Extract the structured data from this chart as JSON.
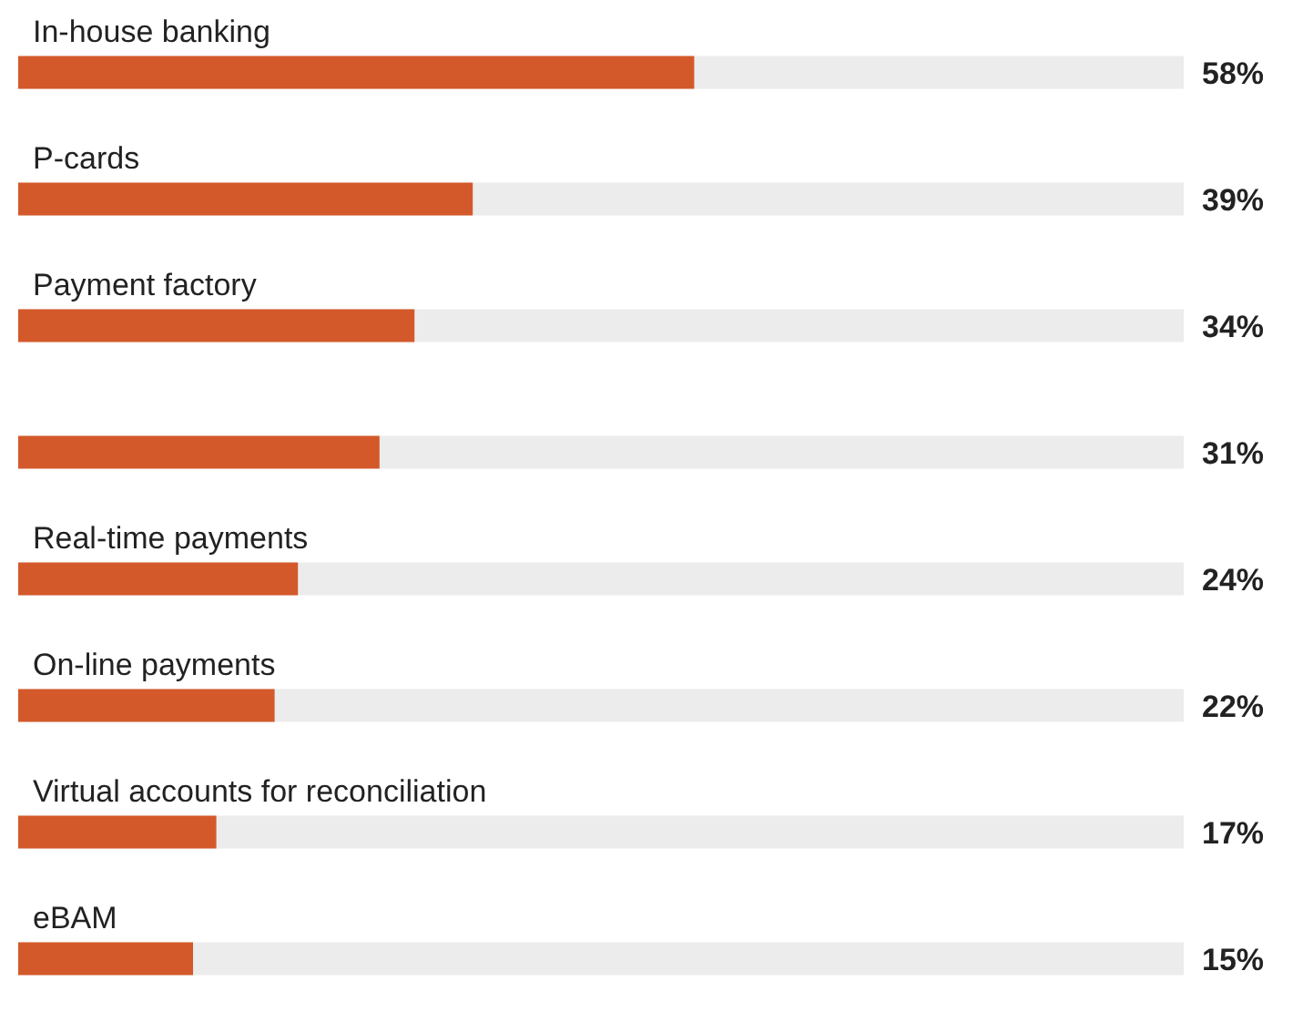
{
  "chart_data": {
    "type": "bar",
    "orientation": "horizontal",
    "categories": [
      "In-house banking",
      "P-cards",
      "Payment factory",
      null,
      "Real-time payments",
      "On-line payments",
      "Virtual accounts for reconciliation",
      "eBAM"
    ],
    "values": [
      58,
      39,
      34,
      31,
      24,
      22,
      17,
      15
    ],
    "value_labels": [
      "58%",
      "39%",
      "34%",
      "31%",
      "24%",
      "22%",
      "17%",
      "15%"
    ],
    "color": "#d4592a",
    "xlim": [
      0,
      100
    ]
  }
}
